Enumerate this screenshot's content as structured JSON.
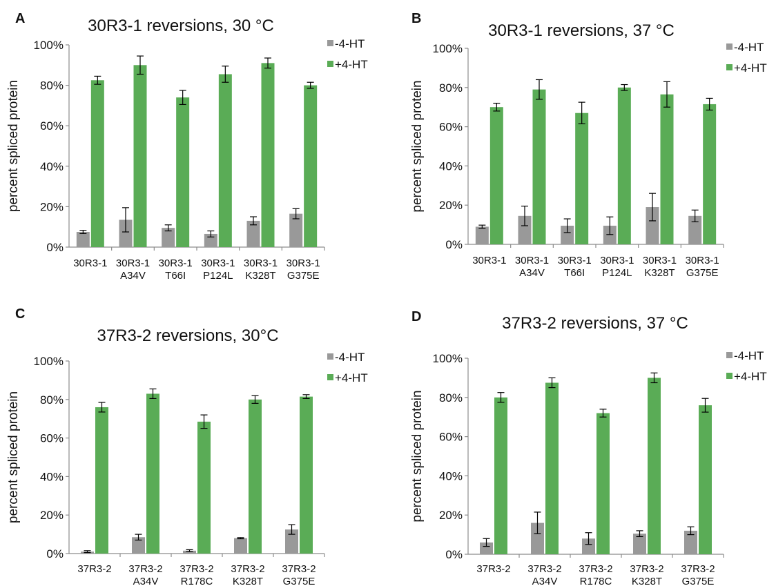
{
  "panel_letters": [
    "A",
    "B",
    "C",
    "D"
  ],
  "colors": {
    "minus": "#999999",
    "plus": "#5aac56",
    "axis": "#8c8c8c",
    "error": "#000000"
  },
  "chart_data": [
    {
      "type": "bar",
      "panel": "A",
      "title": "30R3-1 reversions, 30 °C",
      "ylabel": "percent spliced protein",
      "xlabel": "",
      "ylim": [
        0,
        100
      ],
      "yticks": [
        "0%",
        "20%",
        "40%",
        "60%",
        "80%",
        "100%"
      ],
      "legend": "top-right",
      "categories": [
        [
          "30R3-1",
          ""
        ],
        [
          "30R3-1",
          "A34V"
        ],
        [
          "30R3-1",
          "T66I"
        ],
        [
          "30R3-1",
          "P124L"
        ],
        [
          "30R3-1",
          "K328T"
        ],
        [
          "30R3-1",
          "G375E"
        ]
      ],
      "series": [
        {
          "name": "-4-HT",
          "values": [
            7.5,
            13.5,
            9.5,
            6.5,
            13,
            16.5
          ],
          "errors": [
            0.8,
            6,
            1.5,
            1.5,
            2,
            2.5
          ]
        },
        {
          "name": "+4-HT",
          "values": [
            82.5,
            90,
            74,
            85.5,
            91,
            80
          ],
          "errors": [
            2,
            4.5,
            3.5,
            4,
            2.5,
            1.5
          ]
        }
      ]
    },
    {
      "type": "bar",
      "panel": "B",
      "title": "30R3-1 reversions, 37 °C",
      "ylabel": "percent spliced protein",
      "xlabel": "",
      "ylim": [
        0,
        100
      ],
      "yticks": [
        "0%",
        "20%",
        "40%",
        "60%",
        "80%",
        "100%"
      ],
      "legend": "top-right",
      "categories": [
        [
          "30R3-1",
          ""
        ],
        [
          "30R3-1",
          "A34V"
        ],
        [
          "30R3-1",
          "T66I"
        ],
        [
          "30R3-1",
          "P124L"
        ],
        [
          "30R3-1",
          "K328T"
        ],
        [
          "30R3-1",
          "G375E"
        ]
      ],
      "series": [
        {
          "name": "-4-HT",
          "values": [
            9,
            14.5,
            9.5,
            9.5,
            19,
            14.5
          ],
          "errors": [
            0.8,
            5,
            3.5,
            4.5,
            7,
            3
          ]
        },
        {
          "name": "+4-HT",
          "values": [
            70,
            79,
            67,
            80,
            76.5,
            71.5
          ],
          "errors": [
            2,
            5,
            5.5,
            1.5,
            6.5,
            3
          ]
        }
      ]
    },
    {
      "type": "bar",
      "panel": "C",
      "title": "37R3-2 reversions, 30°C",
      "ylabel": "percent spliced protein",
      "xlabel": "",
      "ylim": [
        0,
        100
      ],
      "yticks": [
        "0%",
        "20%",
        "40%",
        "60%",
        "80%",
        "100%"
      ],
      "legend": "top-right",
      "categories": [
        [
          "37R3-2",
          ""
        ],
        [
          "37R3-2",
          "A34V"
        ],
        [
          "37R3-2",
          "R178C"
        ],
        [
          "37R3-2",
          "K328T"
        ],
        [
          "37R3-2",
          "G375E"
        ]
      ],
      "series": [
        {
          "name": "-4-HT",
          "values": [
            1,
            8.5,
            1.5,
            8,
            12.5
          ],
          "errors": [
            0.5,
            1.5,
            0.5,
            0.3,
            2.5
          ]
        },
        {
          "name": "+4-HT",
          "values": [
            76,
            83,
            68.5,
            80,
            81.5
          ],
          "errors": [
            2.5,
            2.5,
            3.5,
            2,
            1
          ]
        }
      ]
    },
    {
      "type": "bar",
      "panel": "D",
      "title": "37R3-2 reversions, 37 °C",
      "ylabel": "percent spliced protein",
      "xlabel": "",
      "ylim": [
        0,
        100
      ],
      "yticks": [
        "0%",
        "20%",
        "40%",
        "60%",
        "80%",
        "100%"
      ],
      "legend": "top-right",
      "categories": [
        [
          "37R3-2",
          ""
        ],
        [
          "37R3-2",
          "A34V"
        ],
        [
          "37R3-2",
          "R178C"
        ],
        [
          "37R3-2",
          "K328T"
        ],
        [
          "37R3-2",
          "G375E"
        ]
      ],
      "series": [
        {
          "name": "-4-HT",
          "values": [
            6,
            16,
            8,
            10.5,
            12
          ],
          "errors": [
            2,
            5.5,
            3,
            1.5,
            2
          ]
        },
        {
          "name": "+4-HT",
          "values": [
            80,
            87.5,
            72,
            90,
            76
          ],
          "errors": [
            2.5,
            2.5,
            2,
            2.5,
            3.5
          ]
        }
      ]
    }
  ]
}
